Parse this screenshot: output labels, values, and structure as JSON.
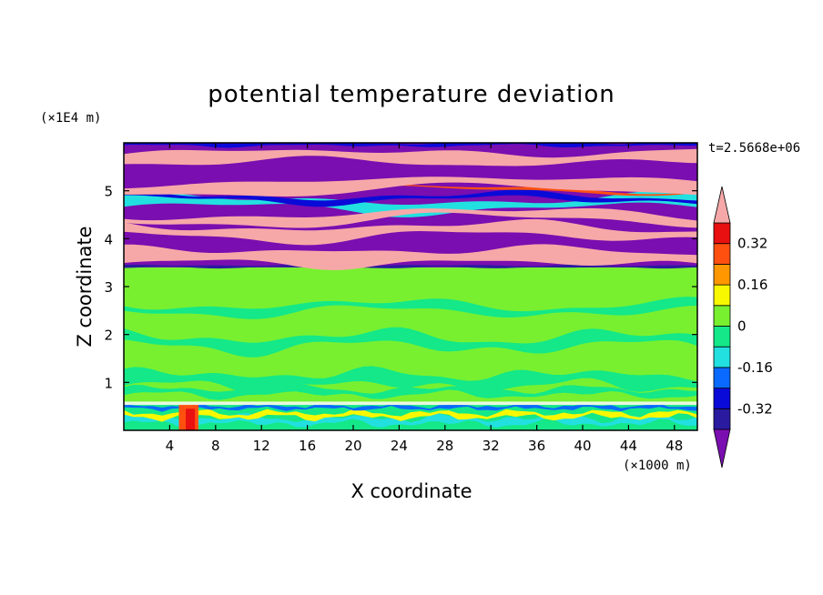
{
  "chart_data": {
    "type": "heatmap",
    "title": "potential temperature deviation",
    "xlabel": "X coordinate",
    "ylabel": "Z coordinate",
    "x_unit": "(×1000 m)",
    "y_unit": "(×1E4 m)",
    "time_label": "t=2.5668e+06",
    "xlim": [
      0,
      50
    ],
    "ylim": [
      0,
      6
    ],
    "x_ticks": [
      "4",
      "8",
      "12",
      "16",
      "20",
      "24",
      "28",
      "32",
      "36",
      "40",
      "44",
      "48"
    ],
    "y_ticks": [
      "1",
      "2",
      "3",
      "4",
      "5"
    ],
    "colorbar": {
      "levels": [
        -0.4,
        -0.32,
        -0.24,
        -0.16,
        -0.08,
        0,
        0.08,
        0.16,
        0.24,
        0.32,
        0.4
      ],
      "tick_labels": [
        "0.32",
        "0.16",
        "0",
        "-0.16",
        "-0.32"
      ],
      "colors_low_to_high": [
        "#7a0eb0",
        "#2a1aa0",
        "#0a0ad8",
        "#0a6aff",
        "#22e0e0",
        "#14e888",
        "#78f030",
        "#f8f800",
        "#ff9800",
        "#ff5010",
        "#e81010",
        "#f6a8a8"
      ],
      "over_color": "#f6a8a8",
      "under_color": "#7a0eb0"
    }
  }
}
